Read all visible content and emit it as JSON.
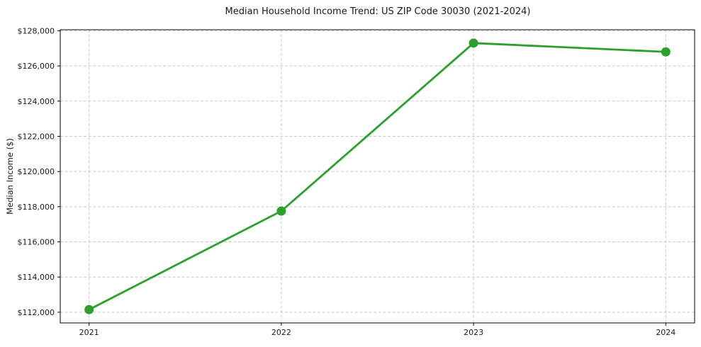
{
  "chart_data": {
    "type": "line",
    "title": "Median Household Income Trend: US ZIP Code 30030 (2021-2024)",
    "xlabel": "",
    "ylabel": "Median Income ($)",
    "x": [
      2021,
      2022,
      2023,
      2024
    ],
    "xtick_labels": [
      "2021",
      "2022",
      "2023",
      "2024"
    ],
    "series": [
      {
        "values": [
          112150,
          117750,
          127300,
          126800
        ],
        "color": "#2ca02c",
        "marker": "circle"
      }
    ],
    "yticks": [
      112000,
      114000,
      116000,
      118000,
      120000,
      122000,
      124000,
      126000,
      128000
    ],
    "ytick_labels": [
      "$112,000",
      "$114,000",
      "$116,000",
      "$118,000",
      "$120,000",
      "$122,000",
      "$124,000",
      "$126,000",
      "$128,000"
    ],
    "xlim": [
      2020.85,
      2024.15
    ],
    "ylim": [
      111392,
      128058
    ],
    "grid": true,
    "grid_color": "#c9c9c9",
    "grid_style": "dashed",
    "spine_color": "#000000",
    "text_color": "#1a1a1a",
    "legend_position": "none"
  }
}
